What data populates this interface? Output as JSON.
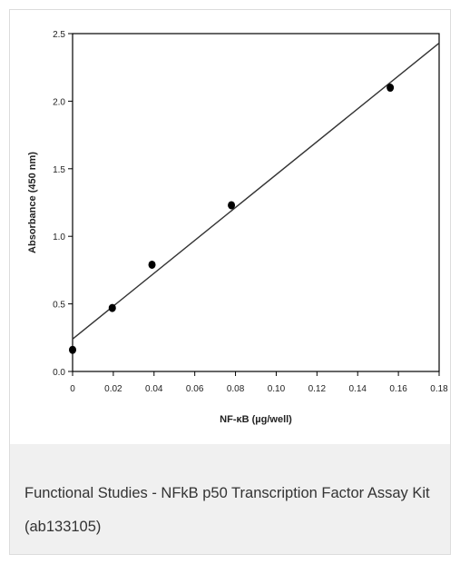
{
  "chart_data": {
    "type": "scatter",
    "xlabel": "NF-κB (µg/well)",
    "ylabel": "Absorbance (450 nm)",
    "xlim": [
      0,
      0.18
    ],
    "ylim": [
      0,
      2.5
    ],
    "x_ticks": [
      "0",
      "0.02",
      "0.04",
      "0.06",
      "0.08",
      "0.10",
      "0.12",
      "0.14",
      "0.16",
      "0.18"
    ],
    "y_ticks": [
      "0.0",
      "0.5",
      "1.0",
      "1.5",
      "2.0",
      "2.5"
    ],
    "x_tick_values": [
      0,
      0.02,
      0.04,
      0.06,
      0.08,
      0.1,
      0.12,
      0.14,
      0.16,
      0.18
    ],
    "y_tick_values": [
      0,
      0.5,
      1.0,
      1.5,
      2.0,
      2.5
    ],
    "points": [
      {
        "x": 0,
        "y": 0.16
      },
      {
        "x": 0.0195,
        "y": 0.47
      },
      {
        "x": 0.039,
        "y": 0.79
      },
      {
        "x": 0.078,
        "y": 1.23
      },
      {
        "x": 0.156,
        "y": 2.1
      }
    ],
    "fit_line": {
      "x": [
        0,
        0.18
      ],
      "y": [
        0.24,
        2.43
      ]
    },
    "grid": false,
    "legend": "none",
    "colors": {
      "points": "#000000",
      "line": "#333333",
      "axes": "#000000"
    }
  },
  "caption": {
    "text": "Functional Studies - NFkB p50 Transcription Factor Assay Kit (ab133105)"
  }
}
